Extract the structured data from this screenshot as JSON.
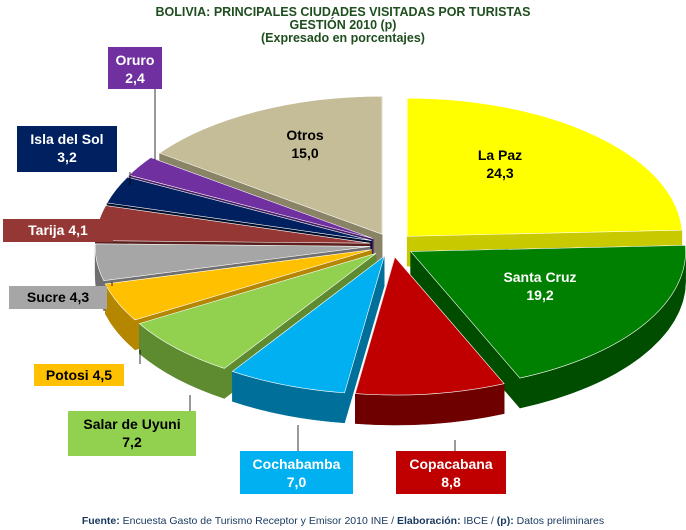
{
  "chart_data": {
    "type": "pie",
    "title": "BOLIVIA: PRINCIPALES CIUDADES VISITADAS POR TURISTAS",
    "subtitle": "GESTIÓN 2010 (p)",
    "subtitle2": "(Expresado en porcentajes)",
    "slices": [
      {
        "label": "La Paz",
        "value_text": "24,3",
        "value": 24.3,
        "color": "#ffff00",
        "side": "#c9c900"
      },
      {
        "label": "Santa Cruz",
        "value_text": "19,2",
        "value": 19.2,
        "color": "#008000",
        "side": "#004d00"
      },
      {
        "label": "Copacabana",
        "value_text": "8,8",
        "value": 8.8,
        "color": "#c00000",
        "side": "#6e0000"
      },
      {
        "label": "Cochabamba",
        "value_text": "7,0",
        "value": 7.0,
        "color": "#00b0f0",
        "side": "#00709a"
      },
      {
        "label": "Salar de Uyuni",
        "value_text": "7,2",
        "value": 7.2,
        "color": "#92d050",
        "side": "#5e8a30"
      },
      {
        "label": "Potosi",
        "value_text": "4,5",
        "value": 4.5,
        "color": "#ffc000",
        "side": "#b58600"
      },
      {
        "label": "Sucre",
        "value_text": "4,3",
        "value": 4.3,
        "color": "#a6a6a6",
        "side": "#6f6f6f"
      },
      {
        "label": "Tarija",
        "value_text": "4,1",
        "value": 4.1,
        "color": "#953735",
        "side": "#5b1f1e"
      },
      {
        "label": "Isla del Sol",
        "value_text": "3,2",
        "value": 3.2,
        "color": "#002060",
        "side": "#00112f"
      },
      {
        "label": "Oruro",
        "value_text": "2,4",
        "value": 2.4,
        "color": "#7030a0",
        "side": "#451c63"
      },
      {
        "label": "Otros",
        "value_text": "15,0",
        "value": 15.0,
        "color": "#c4bd97",
        "side": "#8a8466"
      }
    ]
  },
  "source": {
    "fuente_label": "Fuente:",
    "fuente_text": " Encuesta Gasto de Turismo Receptor y Emisor 2010 INE  / ",
    "elab_label": "Elaboración:",
    "elab_text": " IBCE / ",
    "p_label": "(p):",
    "p_text": " Datos preliminares"
  }
}
